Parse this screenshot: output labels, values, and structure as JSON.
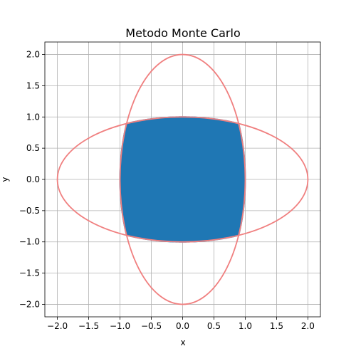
{
  "chart_data": {
    "type": "scatter",
    "title": "Metodo Monte Carlo",
    "xlabel": "x",
    "ylabel": "y",
    "xlim": [
      -2.2,
      2.2
    ],
    "ylim": [
      -2.2,
      2.2
    ],
    "xticks": [
      "−2.0",
      "−1.5",
      "−1.0",
      "−0.5",
      "0.0",
      "0.5",
      "1.0",
      "1.5",
      "2.0"
    ],
    "yticks": [
      "−2.0",
      "−1.5",
      "−1.0",
      "−0.5",
      "0.0",
      "0.5",
      "1.0",
      "1.5",
      "2.0"
    ],
    "grid": true,
    "region": {
      "description": "intersection of x^2 + y^2/4 <= 1 and x^2/4 + y^2 <= 1",
      "color": "#1f77b4",
      "corner": [
        0.894,
        0.894
      ]
    },
    "curves": [
      {
        "type": "ellipse",
        "a": 1,
        "b": 2,
        "color": "#f08080"
      },
      {
        "type": "ellipse",
        "a": 2,
        "b": 1,
        "color": "#f08080"
      }
    ],
    "colors": {
      "points": "#1f77b4",
      "ellipses": "#f08080",
      "grid": "#b0b0b0"
    }
  }
}
